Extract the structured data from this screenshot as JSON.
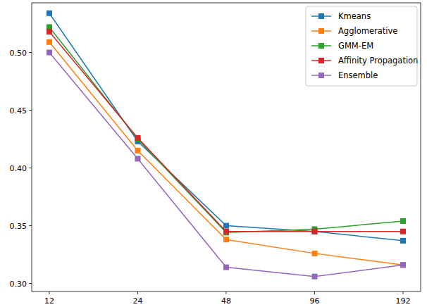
{
  "chart_data": {
    "type": "line",
    "categories": [
      "12",
      "24",
      "48",
      "96",
      "192"
    ],
    "series": [
      {
        "name": "Kmeans",
        "color": "#1f77b4",
        "marker": "square",
        "values": [
          0.534,
          0.423,
          0.35,
          0.345,
          0.337
        ]
      },
      {
        "name": "Agglomerative",
        "color": "#ff7f0e",
        "marker": "square",
        "values": [
          0.509,
          0.415,
          0.338,
          0.326,
          0.316
        ]
      },
      {
        "name": "GMM-EM",
        "color": "#2ca02c",
        "marker": "square",
        "values": [
          0.522,
          0.425,
          0.344,
          0.347,
          0.354
        ]
      },
      {
        "name": "Affinity Propagation",
        "color": "#d62728",
        "marker": "square",
        "values": [
          0.518,
          0.426,
          0.345,
          0.345,
          0.345
        ]
      },
      {
        "name": "Ensemble",
        "color": "#9467bd",
        "marker": "square",
        "values": [
          0.5,
          0.408,
          0.314,
          0.306,
          0.316
        ]
      }
    ],
    "ylim": [
      0.293,
      0.543
    ],
    "yticks": [
      {
        "value": 0.3,
        "label": "0.30"
      },
      {
        "value": 0.35,
        "label": "0.35"
      },
      {
        "value": 0.4,
        "label": "0.40"
      },
      {
        "value": 0.45,
        "label": "0.45"
      },
      {
        "value": 0.5,
        "label": "0.50"
      }
    ],
    "grid": false,
    "legend": "upper-right"
  }
}
